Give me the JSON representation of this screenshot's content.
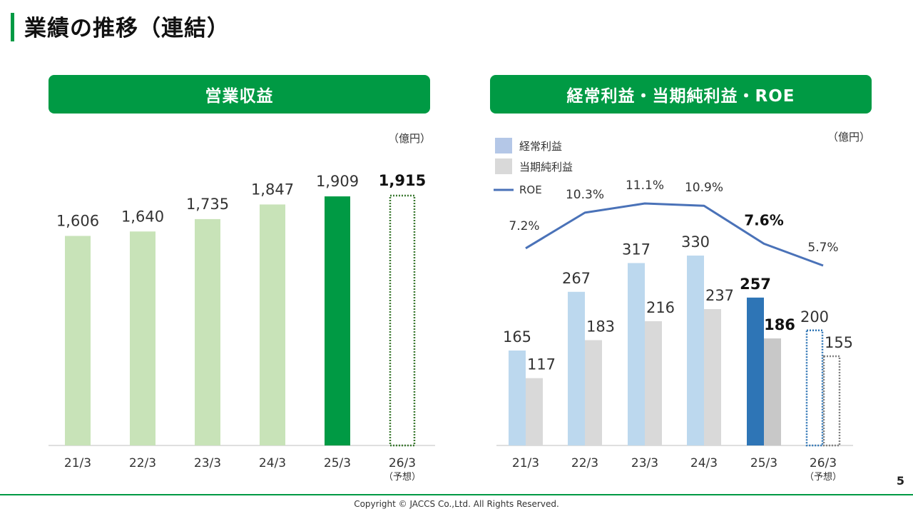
{
  "page": {
    "title": "業績の推移（連結）",
    "page_number": "5",
    "copyright": "Copyright © JACCS Co.,Ltd. All Rights Reserved."
  },
  "colors": {
    "green": "#009a44",
    "light_green": "#c8e3b8",
    "light_blue": "#bcd8ee",
    "light_gray": "#d9d9d9",
    "dark_blue": "#2e75b6",
    "mid_gray": "#c8c8c8",
    "roe_line": "#4a72b8",
    "dotted_green": "#3d7a32",
    "dotted_blue": "#2e75b6",
    "dotted_gray": "#808080"
  },
  "chart_data": [
    {
      "type": "bar",
      "title": "営業収益",
      "unit": "（億円）",
      "categories": [
        "21/3",
        "22/3",
        "23/3",
        "24/3",
        "25/3",
        "26/3"
      ],
      "category_notes": [
        "",
        "",
        "",
        "",
        "",
        "（予想）"
      ],
      "values": [
        1606,
        1640,
        1735,
        1847,
        1909,
        1915
      ],
      "labels": [
        "1,606",
        "1,640",
        "1,735",
        "1,847",
        "1,909",
        "1,915"
      ],
      "highlight_index": 4,
      "forecast_index": 5,
      "ylim": [
        0,
        1915
      ]
    },
    {
      "type": "bar+line",
      "title": "経常利益・当期純利益・ROE",
      "unit": "（億円）",
      "categories": [
        "21/3",
        "22/3",
        "23/3",
        "24/3",
        "25/3",
        "26/3"
      ],
      "category_notes": [
        "",
        "",
        "",
        "",
        "",
        "（予想）"
      ],
      "highlight_index": 4,
      "forecast_index": 5,
      "ylim": [
        0,
        330
      ],
      "legend": [
        "経常利益",
        "当期純利益",
        "ROE"
      ],
      "series": [
        {
          "name": "経常利益",
          "values": [
            165,
            267,
            317,
            330,
            257,
            200
          ],
          "labels": [
            "165",
            "267",
            "317",
            "330",
            "257",
            "200"
          ]
        },
        {
          "name": "当期純利益",
          "values": [
            117,
            183,
            216,
            237,
            186,
            155
          ],
          "labels": [
            "117",
            "183",
            "216",
            "237",
            "186",
            "155"
          ]
        },
        {
          "name": "ROE",
          "values": [
            7.2,
            10.3,
            11.1,
            10.9,
            7.6,
            5.7
          ],
          "labels": [
            "7.2%",
            "10.3%",
            "11.1%",
            "10.9%",
            "7.6%",
            "5.7%"
          ]
        }
      ]
    }
  ]
}
